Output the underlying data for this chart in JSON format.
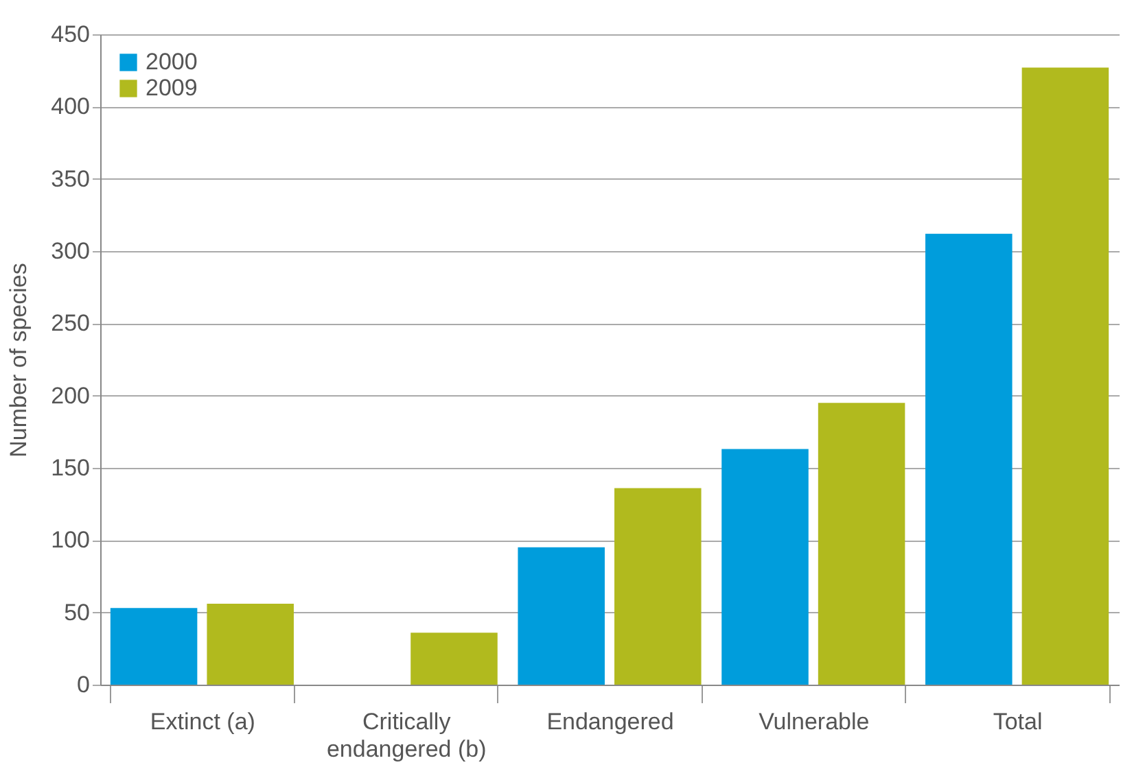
{
  "chart_data": {
    "type": "bar",
    "ylabel": "Number of species",
    "categories": [
      "Extinct (a)",
      "Critically\nendangered (b)",
      "Endangered",
      "Vulnerable",
      "Total"
    ],
    "series": [
      {
        "name": "2000",
        "color": "#009ddc",
        "values": [
          53,
          0,
          95,
          163,
          312
        ]
      },
      {
        "name": "2009",
        "color": "#b1ba1e",
        "values": [
          56,
          36,
          136,
          195,
          427
        ]
      }
    ],
    "ylim": [
      0,
      450
    ],
    "yticks": [
      0,
      50,
      100,
      150,
      200,
      250,
      300,
      350,
      400,
      450
    ],
    "grid": "y",
    "legend": "top left"
  }
}
